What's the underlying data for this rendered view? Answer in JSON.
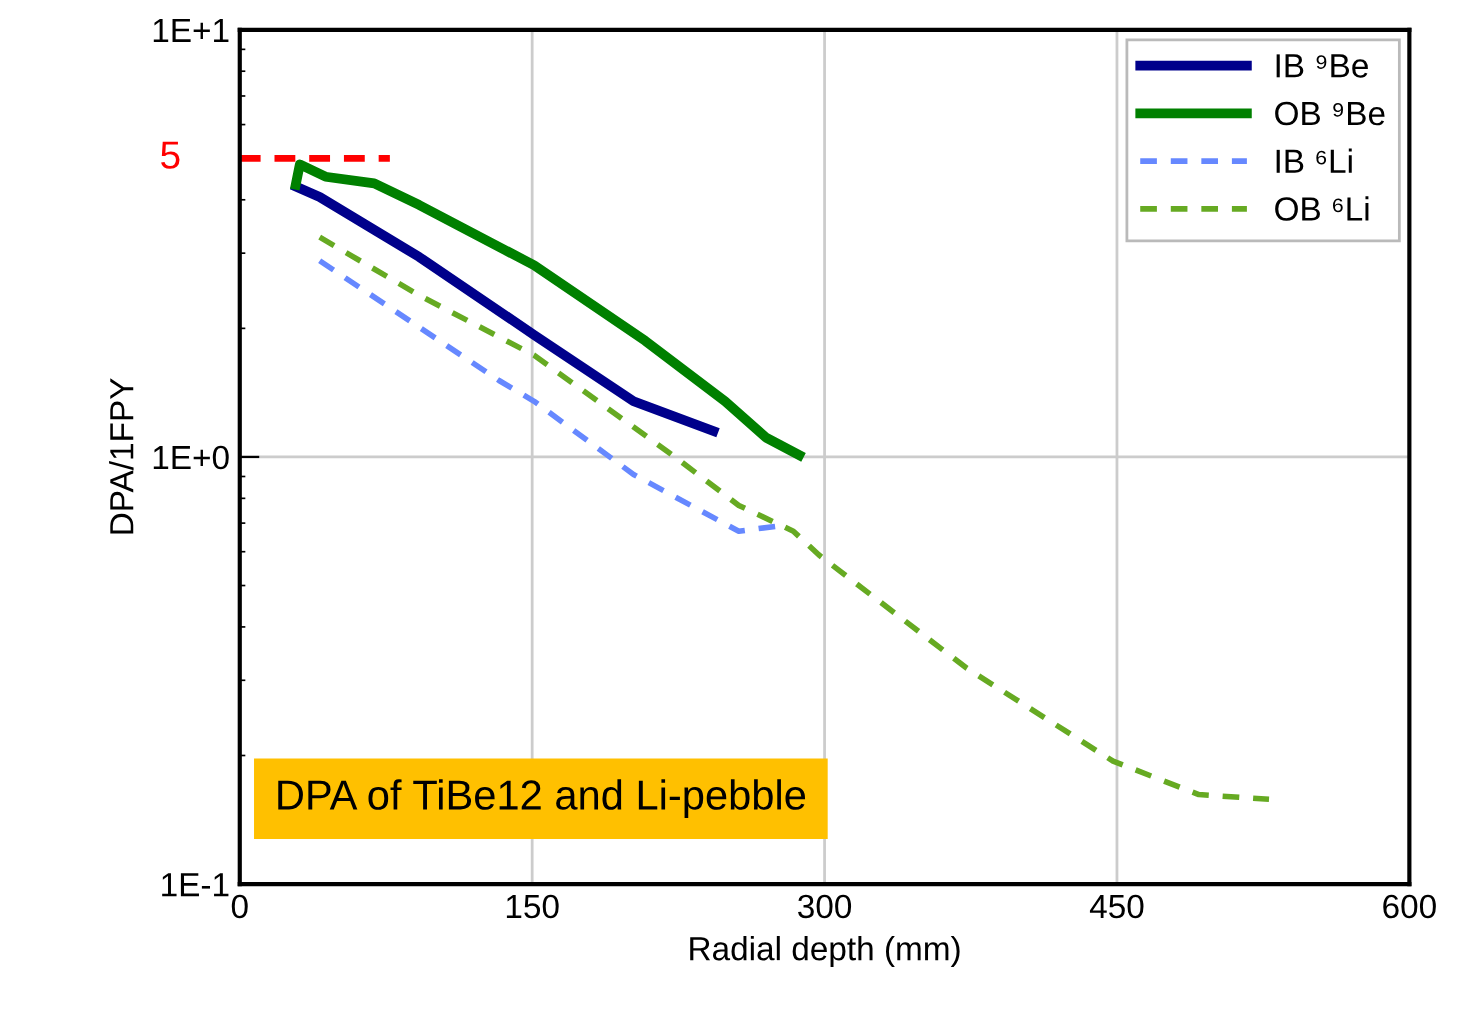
{
  "chart_data": {
    "type": "line",
    "xlabel": "Radial depth (mm)",
    "ylabel": "DPA/1FPY",
    "log": "y",
    "grid": true,
    "legend": "top right",
    "xlim": [
      0,
      600
    ],
    "xticks": [
      0,
      150,
      300,
      450,
      600
    ],
    "ylim": [
      0.1,
      10
    ],
    "yticks": [
      {
        "value": 0.1,
        "label": "1E-1"
      },
      {
        "value": 1,
        "label": "1E+0"
      },
      {
        "value": 10,
        "label": "1E+1"
      }
    ],
    "series": [
      {
        "name": "IB ⁹Be",
        "color": "#00008b",
        "line_style": "solid",
        "x": [
          29,
          41,
          92,
          151,
          202,
          243
        ],
        "values": [
          4.29,
          4.06,
          2.94,
          1.93,
          1.35,
          1.15
        ]
      },
      {
        "name": "OB ⁹Be",
        "color": "#008000",
        "line_style": "solid",
        "x": [
          28.7,
          30.8,
          44,
          69,
          92,
          151,
          208,
          249,
          270,
          287
        ],
        "values": [
          4.34,
          4.84,
          4.53,
          4.37,
          3.89,
          2.81,
          1.87,
          1.35,
          1.11,
          1.01
        ]
      },
      {
        "name": "IB ⁶Li",
        "color": "#6688ff",
        "line_style": "dashed",
        "x": [
          41,
          133,
          151,
          202,
          256,
          277
        ],
        "values": [
          2.88,
          1.51,
          1.35,
          0.91,
          0.67,
          0.69
        ]
      },
      {
        "name": "OB ⁶Li",
        "color": "#66aa22",
        "line_style": "dashed",
        "x": [
          41,
          92,
          151,
          222,
          256,
          284,
          297,
          373,
          448,
          492,
          528
        ],
        "values": [
          3.27,
          2.39,
          1.73,
          1.01,
          0.77,
          0.67,
          0.59,
          0.32,
          0.194,
          0.162,
          0.158
        ]
      },
      {
        "color": "#ff0000",
        "line_style": "dashed",
        "x": [
          0,
          77
        ],
        "values": [
          5,
          5
        ]
      }
    ],
    "annotations": [
      {
        "text": "5",
        "x": 0,
        "y": 5
      },
      "DPA of TiBe12 and Li-pebble"
    ]
  }
}
